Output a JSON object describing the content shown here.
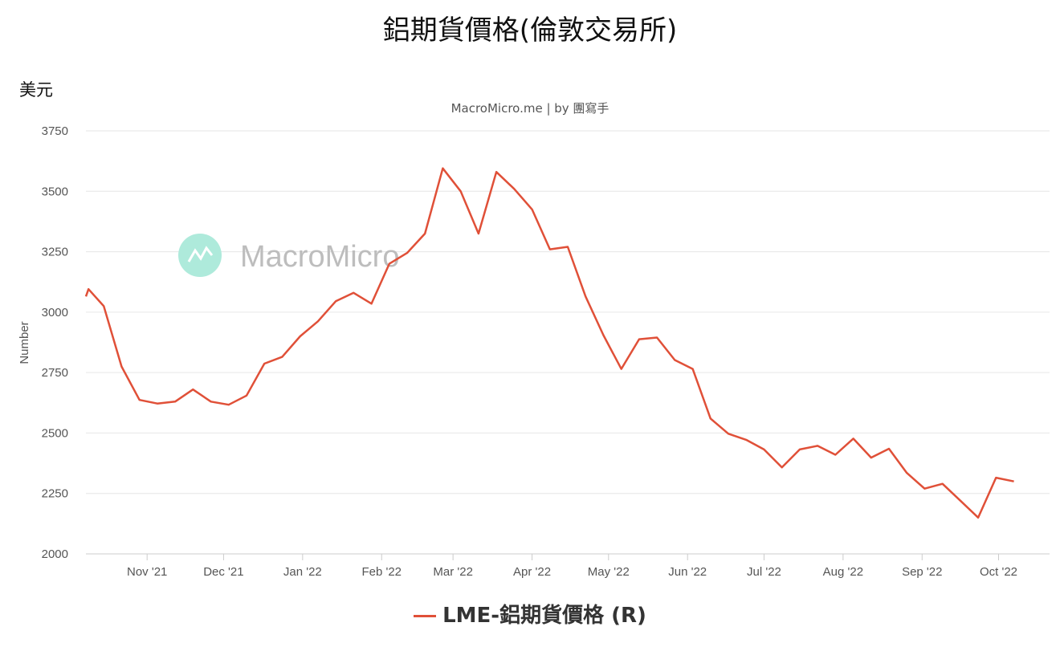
{
  "header": {
    "title": "鋁期貨價格(倫敦交易所)",
    "unit": "美元",
    "subtitle": "MacroMicro.me | by 團寫手"
  },
  "watermark": {
    "text": "MacroMicro"
  },
  "legend": {
    "label": "LME-鋁期貨價格 (R)"
  },
  "colors": {
    "series": "#e05038",
    "grid": "#e6e6e6",
    "watermark_icon": "#aeeadb"
  },
  "chart_data": {
    "type": "line",
    "title": "鋁期貨價格(倫敦交易所)",
    "ylabel": "Number",
    "ylim": [
      2000,
      3750
    ],
    "yticks": [
      2000,
      2250,
      2500,
      2750,
      3000,
      3250,
      3500,
      3750
    ],
    "xlim": [
      "2021-10-08",
      "2022-10-21"
    ],
    "xticks": [
      {
        "label": "Nov '21",
        "date": "2021-11-01"
      },
      {
        "label": "Dec '21",
        "date": "2021-12-01"
      },
      {
        "label": "Jan '22",
        "date": "2022-01-01"
      },
      {
        "label": "Feb '22",
        "date": "2022-02-01"
      },
      {
        "label": "Mar '22",
        "date": "2022-03-01"
      },
      {
        "label": "Apr '22",
        "date": "2022-04-01"
      },
      {
        "label": "May '22",
        "date": "2022-05-01"
      },
      {
        "label": "Jun '22",
        "date": "2022-06-01"
      },
      {
        "label": "Jul '22",
        "date": "2022-07-01"
      },
      {
        "label": "Aug '22",
        "date": "2022-08-01"
      },
      {
        "label": "Sep '22",
        "date": "2022-09-01"
      },
      {
        "label": "Oct '22",
        "date": "2022-10-01"
      }
    ],
    "grid": true,
    "legend_position": "bottom",
    "series": [
      {
        "name": "LME-鋁期貨價格 (R)",
        "points": [
          [
            "2021-10-08",
            3065
          ],
          [
            "2021-10-09",
            3095
          ],
          [
            "2021-10-15",
            3025
          ],
          [
            "2021-10-22",
            2775
          ],
          [
            "2021-10-29",
            2637
          ],
          [
            "2021-11-05",
            2622
          ],
          [
            "2021-11-12",
            2630
          ],
          [
            "2021-11-19",
            2680
          ],
          [
            "2021-11-26",
            2630
          ],
          [
            "2021-12-03",
            2617
          ],
          [
            "2021-12-10",
            2655
          ],
          [
            "2021-12-17",
            2787
          ],
          [
            "2021-12-24",
            2815
          ],
          [
            "2021-12-31",
            2900
          ],
          [
            "2022-01-07",
            2962
          ],
          [
            "2022-01-14",
            3045
          ],
          [
            "2022-01-21",
            3080
          ],
          [
            "2022-01-28",
            3035
          ],
          [
            "2022-02-04",
            3200
          ],
          [
            "2022-02-11",
            3245
          ],
          [
            "2022-02-18",
            3325
          ],
          [
            "2022-02-25",
            3595
          ],
          [
            "2022-03-04",
            3500
          ],
          [
            "2022-03-11",
            3325
          ],
          [
            "2022-03-18",
            3580
          ],
          [
            "2022-03-25",
            3510
          ],
          [
            "2022-04-01",
            3425
          ],
          [
            "2022-04-08",
            3260
          ],
          [
            "2022-04-15",
            3270
          ],
          [
            "2022-04-22",
            3065
          ],
          [
            "2022-04-29",
            2905
          ],
          [
            "2022-05-06",
            2765
          ],
          [
            "2022-05-13",
            2888
          ],
          [
            "2022-05-20",
            2895
          ],
          [
            "2022-05-27",
            2802
          ],
          [
            "2022-06-03",
            2765
          ],
          [
            "2022-06-10",
            2560
          ],
          [
            "2022-06-17",
            2497
          ],
          [
            "2022-06-24",
            2472
          ],
          [
            "2022-07-01",
            2432
          ],
          [
            "2022-07-08",
            2358
          ],
          [
            "2022-07-15",
            2432
          ],
          [
            "2022-07-22",
            2447
          ],
          [
            "2022-07-29",
            2410
          ],
          [
            "2022-08-05",
            2477
          ],
          [
            "2022-08-12",
            2398
          ],
          [
            "2022-08-19",
            2435
          ],
          [
            "2022-08-26",
            2335
          ],
          [
            "2022-09-02",
            2270
          ],
          [
            "2022-09-09",
            2290
          ],
          [
            "2022-09-16",
            2220
          ],
          [
            "2022-09-23",
            2150
          ],
          [
            "2022-09-30",
            2315
          ],
          [
            "2022-10-07",
            2300
          ]
        ]
      }
    ]
  }
}
